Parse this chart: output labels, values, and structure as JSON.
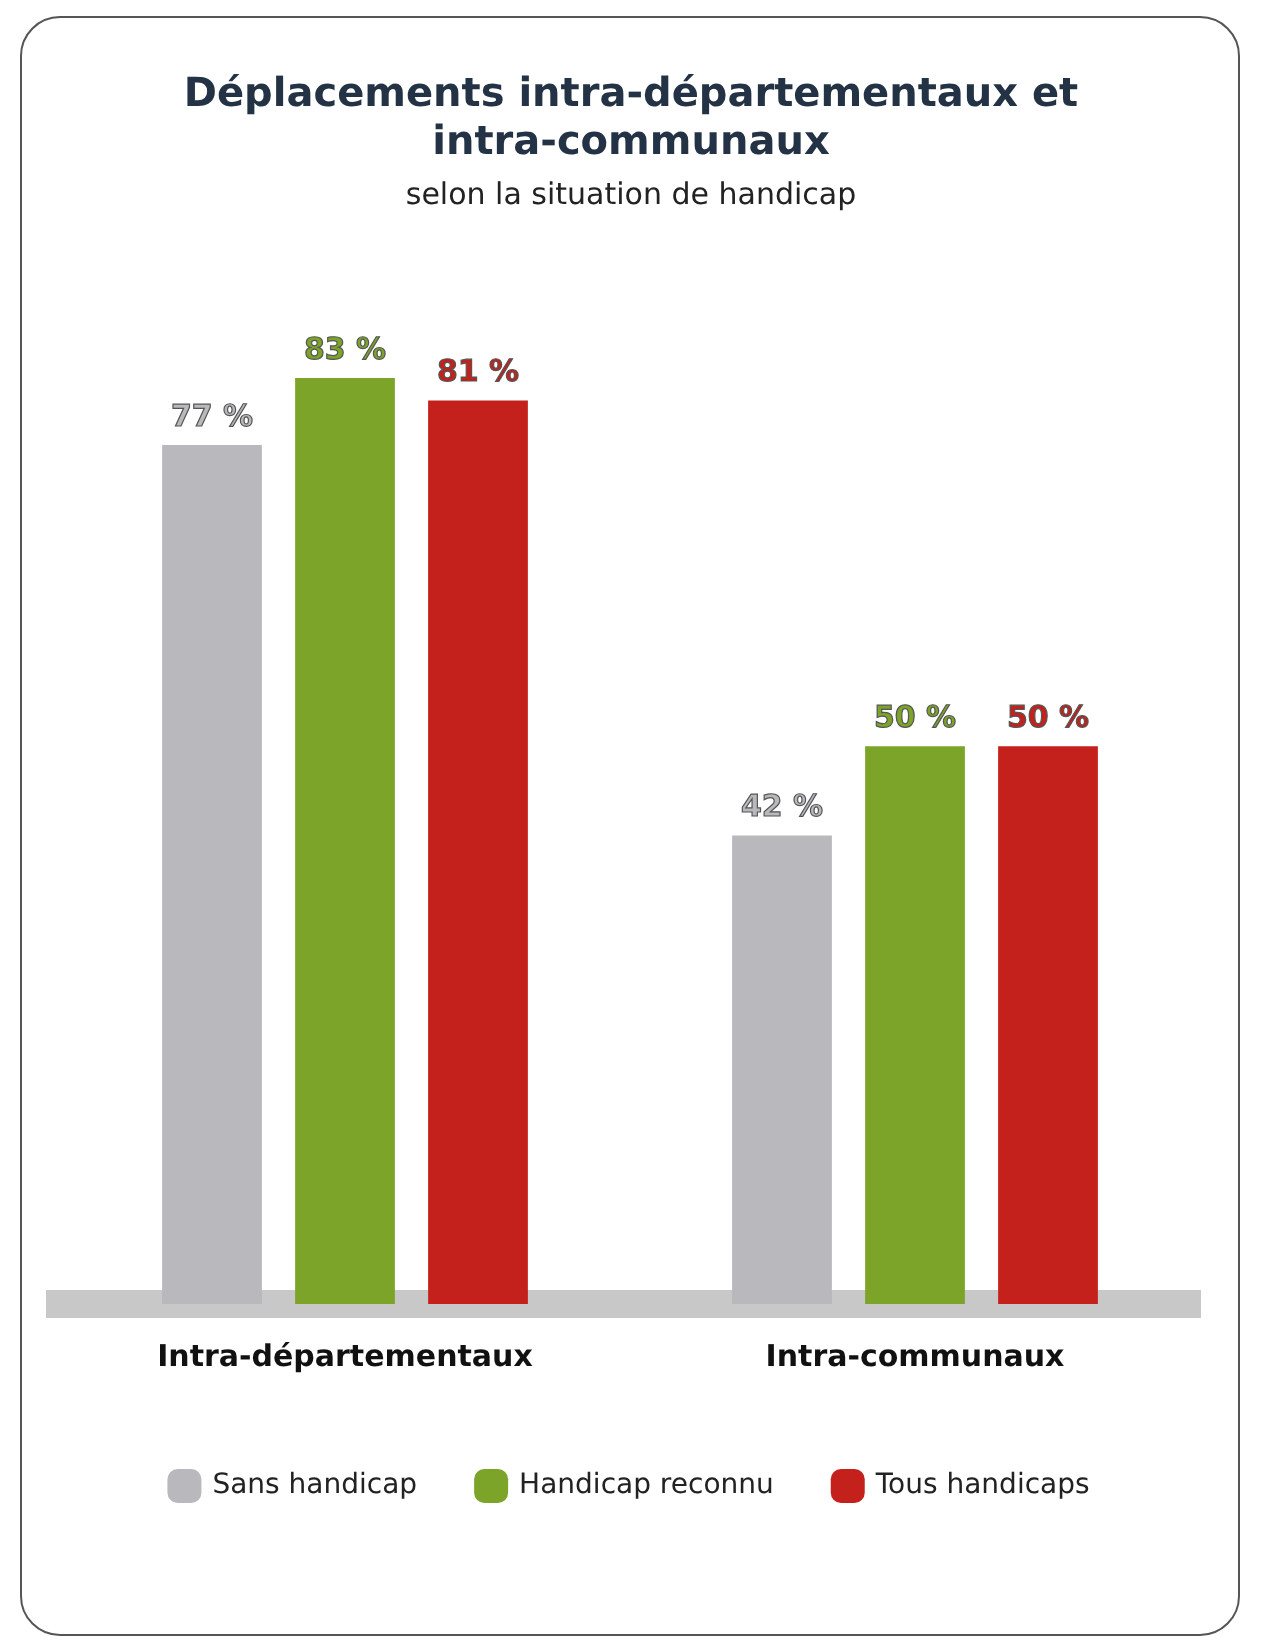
{
  "chart_data": {
    "type": "bar",
    "title": "Déplacements intra-départementaux et intra-communaux",
    "subtitle": "selon la situation de handicap",
    "categories": [
      "Intra-départementaux",
      "Intra-communaux"
    ],
    "series": [
      {
        "name": "Sans handicap",
        "color": "#b9b9bd",
        "values": [
          77,
          42
        ],
        "value_labels": [
          "77 %",
          "42 %"
        ]
      },
      {
        "name": "Handicap reconnu",
        "color": "#7ba428",
        "values": [
          83,
          50
        ],
        "value_labels": [
          "83 %",
          "50 %"
        ]
      },
      {
        "name": "Tous handicaps",
        "color": "#c4201c",
        "values": [
          81,
          50
        ],
        "value_labels": [
          "81 %",
          "50 %"
        ]
      }
    ],
    "grid": false,
    "legend": "bottom"
  }
}
